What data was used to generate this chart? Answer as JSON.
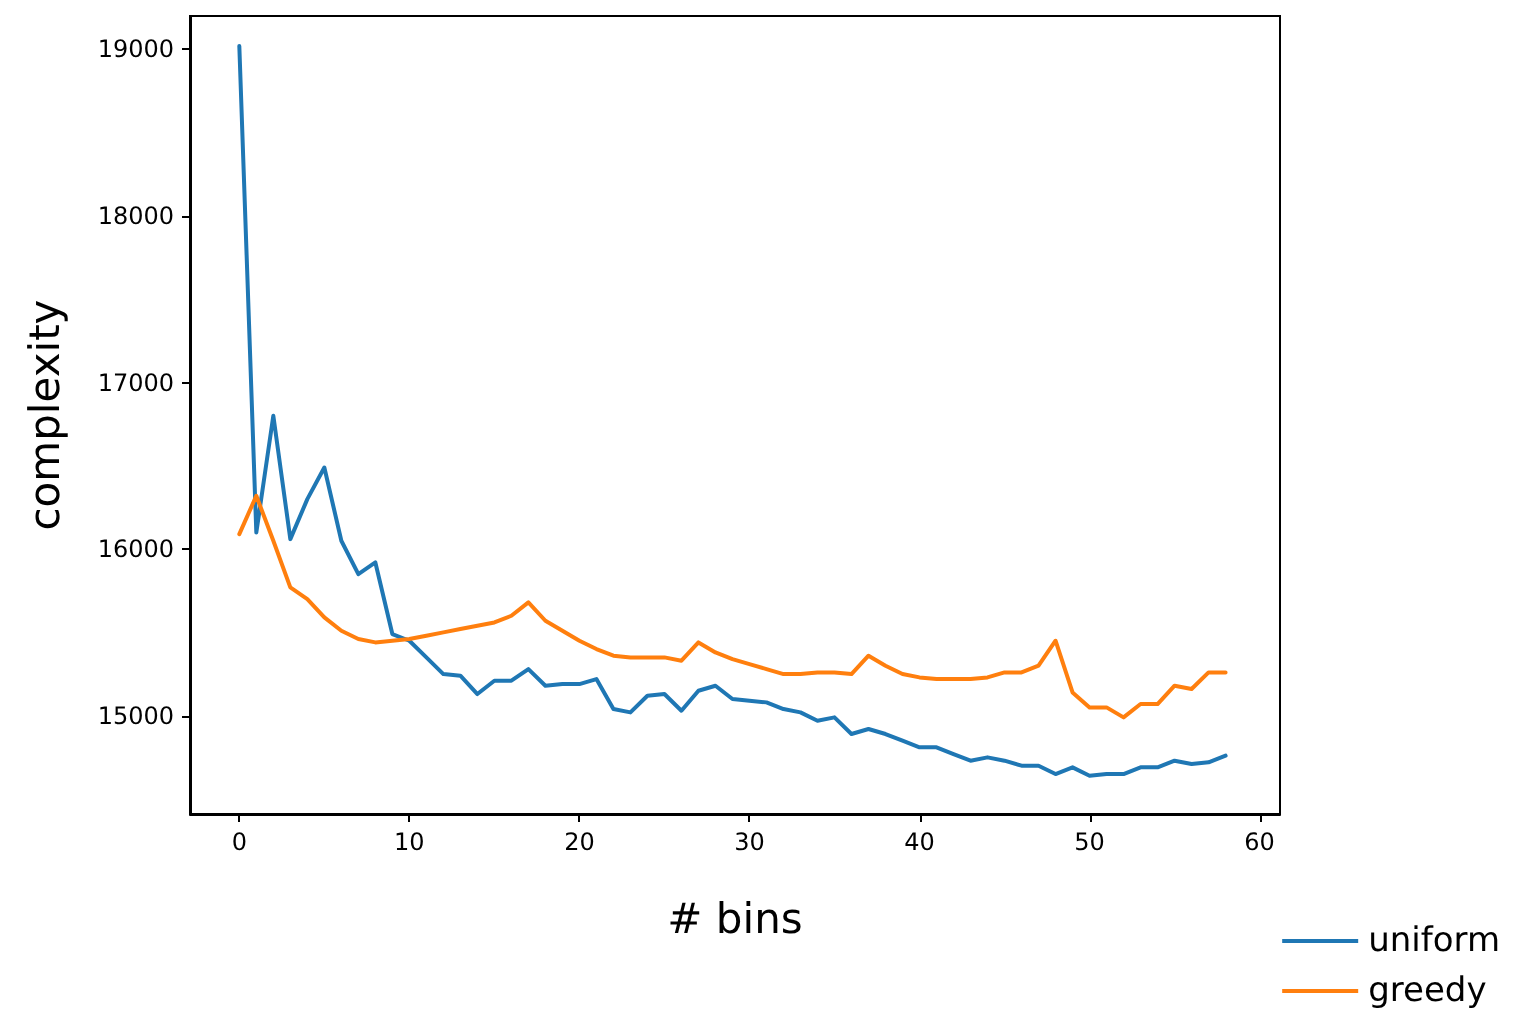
{
  "chart_data": {
    "type": "line",
    "xlabel": "# bins",
    "ylabel": "complexity",
    "x": [
      0,
      1,
      2,
      3,
      4,
      5,
      6,
      7,
      8,
      9,
      10,
      11,
      12,
      13,
      14,
      15,
      16,
      17,
      18,
      19,
      20,
      21,
      22,
      23,
      24,
      25,
      26,
      27,
      28,
      29,
      30,
      31,
      32,
      33,
      34,
      35,
      36,
      37,
      38,
      39,
      40,
      41,
      42,
      43,
      44,
      45,
      46,
      47,
      48,
      49,
      50,
      51,
      52,
      53,
      54,
      55,
      56,
      57,
      58
    ],
    "series": [
      {
        "name": "uniform",
        "color": "#1f77b4",
        "values": [
          19020,
          16100,
          16800,
          16060,
          16300,
          16490,
          16050,
          15850,
          15920,
          15490,
          15450,
          15350,
          15250,
          15240,
          15130,
          15210,
          15210,
          15280,
          15180,
          15190,
          15190,
          15220,
          15040,
          15020,
          15120,
          15130,
          15030,
          15150,
          15180,
          15100,
          15090,
          15080,
          15040,
          15020,
          14970,
          14990,
          14890,
          14920,
          14890,
          14850,
          14810,
          14810,
          14770,
          14730,
          14750,
          14730,
          14700,
          14700,
          14650,
          14690,
          14640,
          14650,
          14650,
          14690,
          14690,
          14730,
          14710,
          14720,
          14760
        ]
      },
      {
        "name": "greedy",
        "color": "#ff7f0e",
        "values": [
          16090,
          16320,
          16050,
          15770,
          15700,
          15590,
          15510,
          15460,
          15440,
          15450,
          15460,
          15480,
          15500,
          15520,
          15540,
          15560,
          15600,
          15680,
          15570,
          15510,
          15450,
          15400,
          15360,
          15350,
          15350,
          15350,
          15330,
          15440,
          15380,
          15340,
          15310,
          15280,
          15250,
          15250,
          15260,
          15260,
          15250,
          15360,
          15300,
          15250,
          15230,
          15220,
          15220,
          15220,
          15230,
          15260,
          15260,
          15300,
          15450,
          15140,
          15050,
          15050,
          14990,
          15070,
          15070,
          15180,
          15160,
          15260,
          15260
        ]
      }
    ],
    "xlim": [
      -2.9,
      61.2
    ],
    "ylim": [
      14410,
      19200
    ],
    "xticks": [
      0,
      10,
      20,
      30,
      40,
      50,
      60
    ],
    "yticks": [
      15000,
      16000,
      17000,
      18000,
      19000
    ],
    "grid": false,
    "legend": "bottom right",
    "marker": "none",
    "line_style": "solid"
  }
}
